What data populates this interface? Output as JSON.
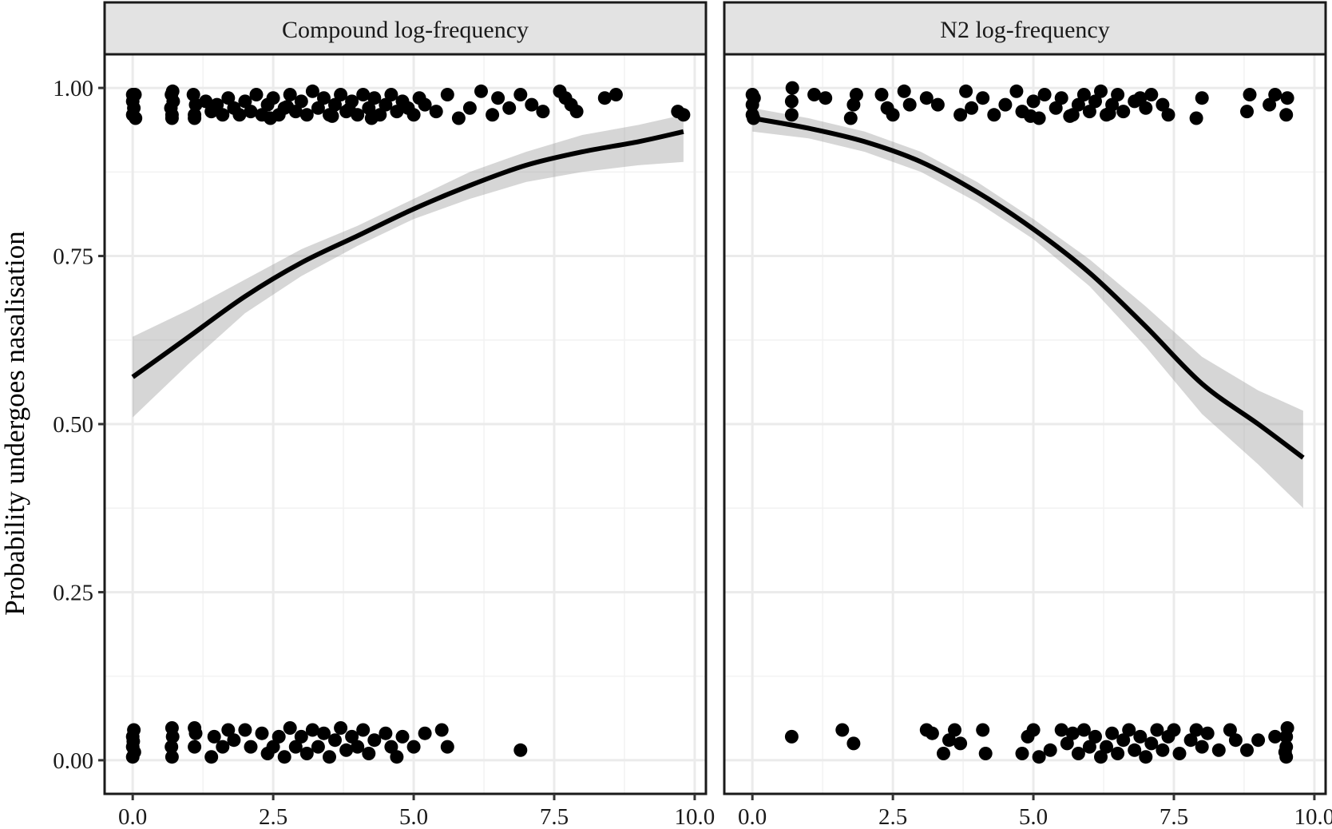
{
  "chart_data": {
    "type": "scatter",
    "ylabel": "Probability undergoes nasalisation",
    "xlabel": "",
    "xlim": [
      -0.5,
      10.2
    ],
    "ylim": [
      -0.05,
      1.05
    ],
    "x_ticks": [
      "0.0",
      "2.5",
      "5.0",
      "7.5",
      "10.0"
    ],
    "y_ticks": [
      "0.00",
      "0.25",
      "0.50",
      "0.75",
      "1.00"
    ],
    "grid": true,
    "panels": [
      {
        "title": "Compound log-frequency",
        "fit": {
          "x": [
            0,
            1,
            2,
            3,
            4,
            5,
            6,
            7,
            8,
            9,
            9.8
          ],
          "y": [
            0.57,
            0.63,
            0.69,
            0.74,
            0.78,
            0.82,
            0.855,
            0.885,
            0.905,
            0.92,
            0.935
          ],
          "lower": [
            0.51,
            0.59,
            0.665,
            0.72,
            0.765,
            0.805,
            0.835,
            0.86,
            0.875,
            0.885,
            0.89
          ],
          "upper": [
            0.63,
            0.67,
            0.715,
            0.76,
            0.795,
            0.835,
            0.875,
            0.905,
            0.93,
            0.945,
            0.96
          ]
        },
        "points_at_1": [
          [
            0,
            0.96
          ],
          [
            0,
            0.98
          ],
          [
            0,
            0.99
          ],
          [
            0.05,
            0.955
          ],
          [
            0.02,
            0.97
          ],
          [
            0.04,
            0.99
          ],
          [
            0.7,
            0.96
          ],
          [
            0.68,
            0.97
          ],
          [
            0.72,
            0.98
          ],
          [
            0.69,
            0.99
          ],
          [
            0.71,
            0.995
          ],
          [
            0.7,
            0.955
          ],
          [
            1.1,
            0.96
          ],
          [
            1.12,
            0.975
          ],
          [
            1.08,
            0.99
          ],
          [
            1.1,
            0.955
          ],
          [
            1.4,
            0.965
          ],
          [
            1.5,
            0.975
          ],
          [
            1.6,
            0.96
          ],
          [
            1.7,
            0.985
          ],
          [
            1.8,
            0.97
          ],
          [
            1.9,
            0.96
          ],
          [
            2.0,
            0.98
          ],
          [
            2.1,
            0.965
          ],
          [
            2.2,
            0.99
          ],
          [
            2.3,
            0.96
          ],
          [
            2.4,
            0.975
          ],
          [
            2.5,
            0.985
          ],
          [
            2.6,
            0.96
          ],
          [
            2.7,
            0.97
          ],
          [
            2.8,
            0.99
          ],
          [
            2.9,
            0.965
          ],
          [
            3.0,
            0.98
          ],
          [
            3.1,
            0.96
          ],
          [
            3.2,
            0.995
          ],
          [
            3.3,
            0.97
          ],
          [
            3.4,
            0.985
          ],
          [
            3.5,
            0.96
          ],
          [
            3.6,
            0.975
          ],
          [
            3.7,
            0.99
          ],
          [
            3.8,
            0.965
          ],
          [
            3.9,
            0.98
          ],
          [
            4.0,
            0.96
          ],
          [
            4.1,
            0.99
          ],
          [
            4.2,
            0.97
          ],
          [
            4.3,
            0.985
          ],
          [
            4.4,
            0.96
          ],
          [
            4.5,
            0.975
          ],
          [
            4.6,
            0.99
          ],
          [
            4.7,
            0.965
          ],
          [
            4.8,
            0.98
          ],
          [
            4.9,
            0.97
          ],
          [
            5.0,
            0.96
          ],
          [
            5.1,
            0.985
          ],
          [
            5.2,
            0.975
          ],
          [
            5.4,
            0.965
          ],
          [
            5.6,
            0.99
          ],
          [
            5.8,
            0.955
          ],
          [
            6.0,
            0.97
          ],
          [
            6.2,
            0.995
          ],
          [
            6.4,
            0.96
          ],
          [
            6.5,
            0.985
          ],
          [
            6.7,
            0.97
          ],
          [
            6.9,
            0.99
          ],
          [
            7.1,
            0.975
          ],
          [
            7.3,
            0.965
          ],
          [
            7.6,
            0.995
          ],
          [
            7.7,
            0.985
          ],
          [
            7.8,
            0.975
          ],
          [
            7.9,
            0.965
          ],
          [
            8.4,
            0.985
          ],
          [
            8.6,
            0.99
          ],
          [
            9.7,
            0.965
          ],
          [
            9.8,
            0.96
          ],
          [
            2.45,
            0.955
          ],
          [
            3.55,
            0.958
          ],
          [
            4.25,
            0.955
          ],
          [
            1.3,
            0.98
          ],
          [
            2.75,
            0.972
          ],
          [
            3.85,
            0.968
          ]
        ],
        "points_at_0": [
          [
            0,
            0.005
          ],
          [
            0,
            0.02
          ],
          [
            0,
            0.035
          ],
          [
            0.02,
            0.045
          ],
          [
            0.03,
            0.012
          ],
          [
            0.01,
            0.028
          ],
          [
            0.7,
            0.005
          ],
          [
            0.69,
            0.02
          ],
          [
            0.71,
            0.035
          ],
          [
            0.7,
            0.048
          ],
          [
            1.1,
            0.02
          ],
          [
            1.12,
            0.04
          ],
          [
            1.1,
            0.048
          ],
          [
            1.4,
            0.005
          ],
          [
            1.45,
            0.035
          ],
          [
            1.6,
            0.02
          ],
          [
            1.7,
            0.045
          ],
          [
            1.8,
            0.03
          ],
          [
            2.0,
            0.045
          ],
          [
            2.1,
            0.02
          ],
          [
            2.3,
            0.04
          ],
          [
            2.4,
            0.01
          ],
          [
            2.5,
            0.02
          ],
          [
            2.6,
            0.035
          ],
          [
            2.7,
            0.005
          ],
          [
            2.8,
            0.048
          ],
          [
            2.9,
            0.02
          ],
          [
            3.0,
            0.035
          ],
          [
            3.1,
            0.01
          ],
          [
            3.2,
            0.045
          ],
          [
            3.3,
            0.02
          ],
          [
            3.4,
            0.04
          ],
          [
            3.5,
            0.005
          ],
          [
            3.6,
            0.03
          ],
          [
            3.7,
            0.048
          ],
          [
            3.8,
            0.015
          ],
          [
            3.9,
            0.035
          ],
          [
            4.0,
            0.02
          ],
          [
            4.1,
            0.045
          ],
          [
            4.2,
            0.01
          ],
          [
            4.3,
            0.03
          ],
          [
            4.5,
            0.04
          ],
          [
            4.6,
            0.02
          ],
          [
            4.7,
            0.005
          ],
          [
            4.8,
            0.035
          ],
          [
            5.0,
            0.02
          ],
          [
            5.2,
            0.04
          ],
          [
            5.5,
            0.045
          ],
          [
            5.6,
            0.02
          ],
          [
            6.9,
            0.015
          ]
        ]
      },
      {
        "title": "N2 log-frequency",
        "fit": {
          "x": [
            0,
            1,
            2,
            3,
            4,
            5,
            6,
            7,
            8,
            9,
            9.8
          ],
          "y": [
            0.955,
            0.94,
            0.92,
            0.89,
            0.845,
            0.79,
            0.725,
            0.645,
            0.56,
            0.5,
            0.45
          ],
          "lower": [
            0.935,
            0.925,
            0.905,
            0.875,
            0.83,
            0.775,
            0.705,
            0.615,
            0.515,
            0.44,
            0.375
          ],
          "upper": [
            0.97,
            0.955,
            0.935,
            0.905,
            0.86,
            0.805,
            0.745,
            0.675,
            0.6,
            0.55,
            0.52
          ]
        },
        "points_at_1": [
          [
            0,
            0.96
          ],
          [
            0,
            0.975
          ],
          [
            0,
            0.99
          ],
          [
            0.02,
            0.955
          ],
          [
            0.03,
            0.985
          ],
          [
            0.7,
            0.96
          ],
          [
            0.7,
            0.98
          ],
          [
            0.71,
            1.0
          ],
          [
            1.1,
            0.99
          ],
          [
            1.3,
            0.985
          ],
          [
            1.75,
            0.955
          ],
          [
            1.8,
            0.975
          ],
          [
            1.85,
            0.99
          ],
          [
            2.3,
            0.99
          ],
          [
            2.4,
            0.97
          ],
          [
            2.5,
            0.96
          ],
          [
            2.7,
            0.995
          ],
          [
            2.8,
            0.975
          ],
          [
            3.1,
            0.985
          ],
          [
            3.3,
            0.975
          ],
          [
            3.7,
            0.96
          ],
          [
            3.8,
            0.995
          ],
          [
            3.9,
            0.97
          ],
          [
            4.1,
            0.985
          ],
          [
            4.3,
            0.96
          ],
          [
            4.5,
            0.975
          ],
          [
            4.7,
            0.995
          ],
          [
            4.8,
            0.965
          ],
          [
            5.0,
            0.98
          ],
          [
            5.1,
            0.955
          ],
          [
            5.2,
            0.99
          ],
          [
            5.4,
            0.97
          ],
          [
            5.5,
            0.985
          ],
          [
            5.7,
            0.96
          ],
          [
            5.8,
            0.975
          ],
          [
            5.9,
            0.99
          ],
          [
            6.0,
            0.965
          ],
          [
            6.1,
            0.98
          ],
          [
            6.2,
            0.995
          ],
          [
            6.3,
            0.96
          ],
          [
            6.4,
            0.975
          ],
          [
            6.5,
            0.99
          ],
          [
            6.6,
            0.965
          ],
          [
            6.8,
            0.98
          ],
          [
            7.0,
            0.97
          ],
          [
            7.1,
            0.99
          ],
          [
            7.3,
            0.975
          ],
          [
            7.4,
            0.96
          ],
          [
            7.9,
            0.955
          ],
          [
            8.0,
            0.985
          ],
          [
            8.8,
            0.965
          ],
          [
            8.85,
            0.99
          ],
          [
            9.2,
            0.975
          ],
          [
            9.3,
            0.99
          ],
          [
            9.5,
            0.96
          ],
          [
            9.52,
            0.985
          ],
          [
            5.65,
            0.958
          ],
          [
            6.35,
            0.962
          ],
          [
            4.95,
            0.958
          ],
          [
            6.9,
            0.985
          ]
        ],
        "points_at_0": [
          [
            0.7,
            0.035
          ],
          [
            1.6,
            0.045
          ],
          [
            1.8,
            0.025
          ],
          [
            3.1,
            0.045
          ],
          [
            3.2,
            0.04
          ],
          [
            3.4,
            0.01
          ],
          [
            3.5,
            0.03
          ],
          [
            3.6,
            0.045
          ],
          [
            3.7,
            0.025
          ],
          [
            4.1,
            0.045
          ],
          [
            4.15,
            0.01
          ],
          [
            4.8,
            0.01
          ],
          [
            4.9,
            0.035
          ],
          [
            5.0,
            0.045
          ],
          [
            5.1,
            0.005
          ],
          [
            5.3,
            0.015
          ],
          [
            5.5,
            0.045
          ],
          [
            5.6,
            0.025
          ],
          [
            5.7,
            0.04
          ],
          [
            5.8,
            0.01
          ],
          [
            5.9,
            0.045
          ],
          [
            6.0,
            0.02
          ],
          [
            6.1,
            0.035
          ],
          [
            6.2,
            0.005
          ],
          [
            6.3,
            0.02
          ],
          [
            6.4,
            0.04
          ],
          [
            6.5,
            0.01
          ],
          [
            6.6,
            0.03
          ],
          [
            6.7,
            0.045
          ],
          [
            6.8,
            0.015
          ],
          [
            6.9,
            0.035
          ],
          [
            7.0,
            0.005
          ],
          [
            7.1,
            0.025
          ],
          [
            7.2,
            0.045
          ],
          [
            7.3,
            0.015
          ],
          [
            7.4,
            0.035
          ],
          [
            7.5,
            0.045
          ],
          [
            7.6,
            0.01
          ],
          [
            7.8,
            0.03
          ],
          [
            7.9,
            0.045
          ],
          [
            8.0,
            0.02
          ],
          [
            8.1,
            0.04
          ],
          [
            8.3,
            0.015
          ],
          [
            8.5,
            0.045
          ],
          [
            8.6,
            0.03
          ],
          [
            8.8,
            0.015
          ],
          [
            9.0,
            0.03
          ],
          [
            9.3,
            0.035
          ],
          [
            9.5,
            0.005
          ],
          [
            9.5,
            0.02
          ],
          [
            9.5,
            0.035
          ],
          [
            9.52,
            0.048
          ],
          [
            9.48,
            0.012
          ]
        ]
      }
    ]
  }
}
